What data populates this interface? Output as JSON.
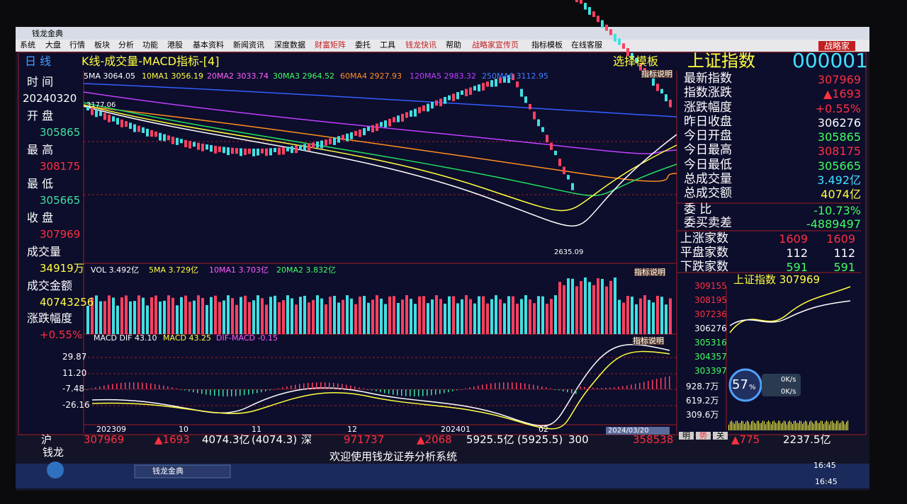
{
  "window": {
    "title": "钱龙金典",
    "menu": [
      "系统",
      "大盘",
      "行情",
      "板块",
      "分析",
      "功能",
      "港股",
      "基本资料",
      "新闻资讯",
      "深度数据",
      "财富矩阵",
      "委托",
      "工具",
      "钱龙快讯",
      "帮助",
      "战略家宣传页",
      "指标模板",
      "在线客服"
    ],
    "brand": "战略家"
  },
  "header": {
    "period": "日 线",
    "view": "K线-成交量-MACD指标-[4]",
    "template": "选择模板",
    "index_name": "上证指数",
    "index_code": "000001"
  },
  "ma_legend": [
    "5MA 3064.05",
    "10MA1 3056.19",
    "20MA2 3033.74",
    "30MA3 2964.52",
    "60MA4 2927.93",
    "120MA5 2983.32",
    "250MA6 3112.95"
  ],
  "indicator_note": "指标说明",
  "left_panel": [
    {
      "label": "时 间",
      "value": "20240320"
    },
    {
      "label": "开 盘",
      "value": "305865"
    },
    {
      "label": "最 高",
      "value": "308175"
    },
    {
      "label": "最 低",
      "value": "305665"
    },
    {
      "label": "收 盘",
      "value": "307969"
    },
    {
      "label": "成交量",
      "value": "34919万"
    },
    {
      "label": "成交金额",
      "value": "40743256"
    },
    {
      "label": "涨跌幅度",
      "value": "+0.55%"
    }
  ],
  "annotations": [
    "3177.06",
    "2635.09"
  ],
  "vol_legend": [
    "VOL 3.492亿",
    "5MA 3.729亿",
    "10MA1 3.703亿",
    "20MA2 3.832亿"
  ],
  "macd_legend": [
    "MACD DIF 43.10",
    "MACD 43.25",
    "DIF-MACD -0.15"
  ],
  "macd_ticks": [
    "29.87",
    "11.20",
    "-7.48",
    "-26.16"
  ],
  "date_labels": [
    "202309",
    "10",
    "11",
    "12",
    "202401",
    "02"
  ],
  "cursor_date": "2024/03/20",
  "quote_panel": [
    {
      "label": "最新指数",
      "value": "307969"
    },
    {
      "label": "指数涨跌",
      "value": "▲1693"
    },
    {
      "label": "涨跌幅度",
      "value": "+0.55%"
    },
    {
      "label": "昨日收盘",
      "value": "306276"
    },
    {
      "label": "今日开盘",
      "value": "305865"
    },
    {
      "label": "今日最高",
      "value": "308175"
    },
    {
      "label": "今日最低",
      "value": "305665"
    },
    {
      "label": "总成交量",
      "value": "3.492亿"
    },
    {
      "label": "总成交额",
      "value": "4074亿"
    },
    {
      "label": "委 比",
      "value": "-10.73%"
    },
    {
      "label": "委买卖差",
      "value": "-4889497"
    }
  ],
  "market_stats": [
    {
      "label": "上涨家数",
      "a": "1609",
      "b": "1609"
    },
    {
      "label": "平盘家数",
      "a": "112",
      "b": "112"
    },
    {
      "label": "下跌家数",
      "a": "591",
      "b": "591"
    }
  ],
  "mini_chart": {
    "title": "上证指数 307969",
    "yticks": [
      "309155",
      "308195",
      "307236",
      "306276",
      "305316",
      "304357",
      "303397"
    ],
    "vol_ticks": [
      "928.7万",
      "619.2万",
      "309.6万"
    ],
    "tabs": [
      "明",
      "势",
      "关"
    ]
  },
  "speed": {
    "percent": "57",
    "unit": "%",
    "up": "0K/s",
    "down": "0K/s"
  },
  "bottom_bar": {
    "sh": "沪",
    "sh_index": "307969",
    "sh_change": "▲1693",
    "sh_amount": "4074.3亿",
    "sh_amount2": "(4074.3)",
    "sz": "深",
    "sz_index": "971737",
    "sz_change": "▲2068",
    "sz_amount": "5925.5亿",
    "sz_amount2": "(5925.5)",
    "hs": "300",
    "hs_index": "358538",
    "hs_change": "▲775",
    "hs_amount": "2237.5亿"
  },
  "status": "欢迎使用钱龙证券分析系统",
  "brand2": "钱龙",
  "taskbar": {
    "app": "钱龙金典",
    "time1": "16:45",
    "time2": "16:45"
  }
}
